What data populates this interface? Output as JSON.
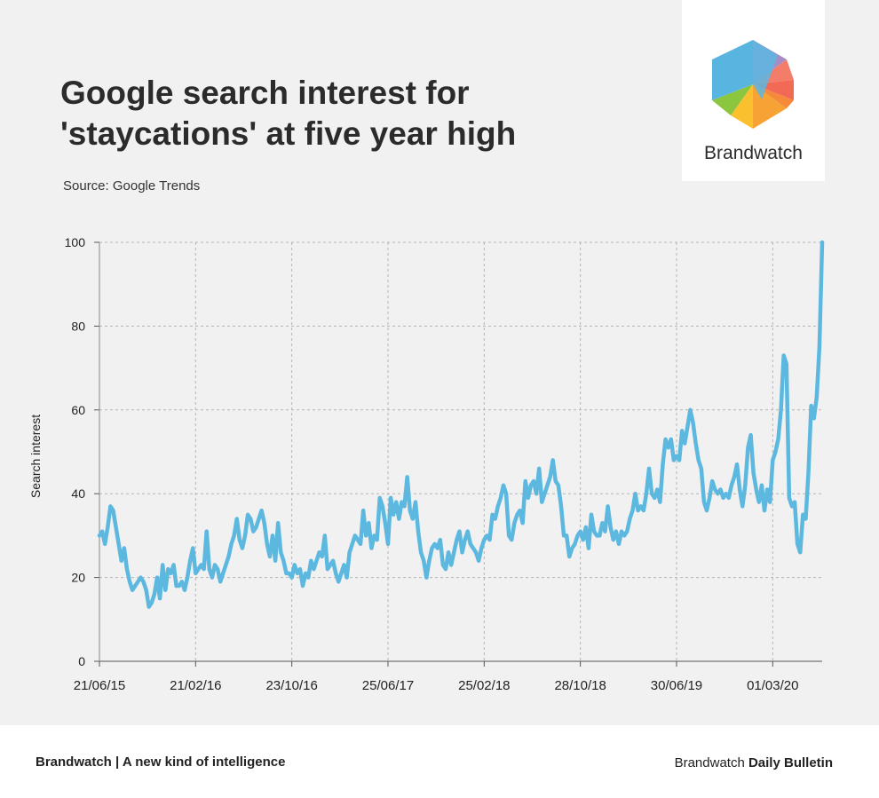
{
  "title_lines": [
    "Google search interest for",
    "'staycations' at five year high"
  ],
  "source": "Source: Google Trends",
  "logo": {
    "text": "Brandwatch"
  },
  "footer": {
    "left": "Brandwatch | A new kind of intelligence",
    "right_regular": "Brandwatch",
    "right_bold": "Daily Bulletin"
  },
  "colors": {
    "line": "#5db8e0",
    "grid": "#b5b5b5",
    "background": "#f1f1f1"
  },
  "chart_data": {
    "type": "line",
    "title": "Google search interest for 'staycations' at five year high",
    "ylabel": "Search interest",
    "xlabel": "",
    "ylim": [
      0,
      100
    ],
    "yticks": [
      0,
      20,
      40,
      60,
      80,
      100
    ],
    "x_ticks": [
      "21/06/15",
      "21/02/16",
      "23/10/16",
      "25/06/17",
      "25/02/18",
      "28/10/18",
      "30/06/19",
      "01/03/20"
    ],
    "x_tick_weeks": [
      0,
      35,
      70,
      105,
      140,
      175,
      210,
      245
    ],
    "grid": true,
    "series": [
      {
        "name": "staycations",
        "values": [
          30,
          31,
          28,
          32,
          37,
          36,
          32,
          28,
          24,
          27,
          22,
          19,
          17,
          18,
          19,
          20,
          19,
          17,
          13,
          14,
          16,
          20,
          15,
          23,
          17,
          22,
          21,
          23,
          18,
          18,
          19,
          17,
          20,
          24,
          27,
          21,
          22,
          23,
          22,
          31,
          22,
          20,
          23,
          22,
          19,
          21,
          23,
          25,
          28,
          30,
          34,
          29,
          27,
          30,
          35,
          34,
          31,
          32,
          34,
          36,
          33,
          28,
          25,
          30,
          24,
          33,
          26,
          24,
          21,
          21,
          20,
          23,
          21,
          22,
          18,
          21,
          20,
          24,
          22,
          24,
          26,
          25,
          30,
          22,
          23,
          24,
          21,
          19,
          21,
          23,
          20,
          26,
          28,
          30,
          29,
          28,
          36,
          30,
          33,
          27,
          30,
          29,
          39,
          37,
          33,
          28,
          39,
          35,
          38,
          34,
          38,
          37,
          44,
          36,
          34,
          38,
          31,
          26,
          24,
          20,
          24,
          27,
          28,
          27,
          29,
          23,
          22,
          26,
          23,
          26,
          29,
          31,
          26,
          29,
          31,
          28,
          27,
          26,
          24,
          27,
          29,
          30,
          29,
          35,
          34,
          37,
          39,
          42,
          40,
          30,
          29,
          33,
          35,
          36,
          33,
          43,
          39,
          42,
          43,
          40,
          46,
          38,
          40,
          42,
          44,
          48,
          43,
          42,
          37,
          30,
          30,
          25,
          27,
          28,
          30,
          31,
          29,
          32,
          27,
          35,
          31,
          30,
          30,
          33,
          31,
          37,
          32,
          29,
          31,
          28,
          31,
          30,
          31,
          34,
          36,
          40,
          36,
          37,
          36,
          40,
          46,
          40,
          39,
          41,
          38,
          47,
          53,
          51,
          53,
          48,
          49,
          48,
          55,
          52,
          56,
          60,
          57,
          52,
          48,
          46,
          38,
          36,
          39,
          43,
          41,
          40,
          41,
          39,
          40,
          39,
          42,
          44,
          47,
          41,
          37,
          42,
          51,
          54,
          45,
          41,
          38,
          42,
          36,
          41,
          38,
          48,
          50,
          53,
          60,
          73,
          71,
          39,
          37,
          38,
          28,
          26,
          35,
          34,
          45,
          61,
          58,
          63,
          75,
          100
        ]
      }
    ]
  }
}
